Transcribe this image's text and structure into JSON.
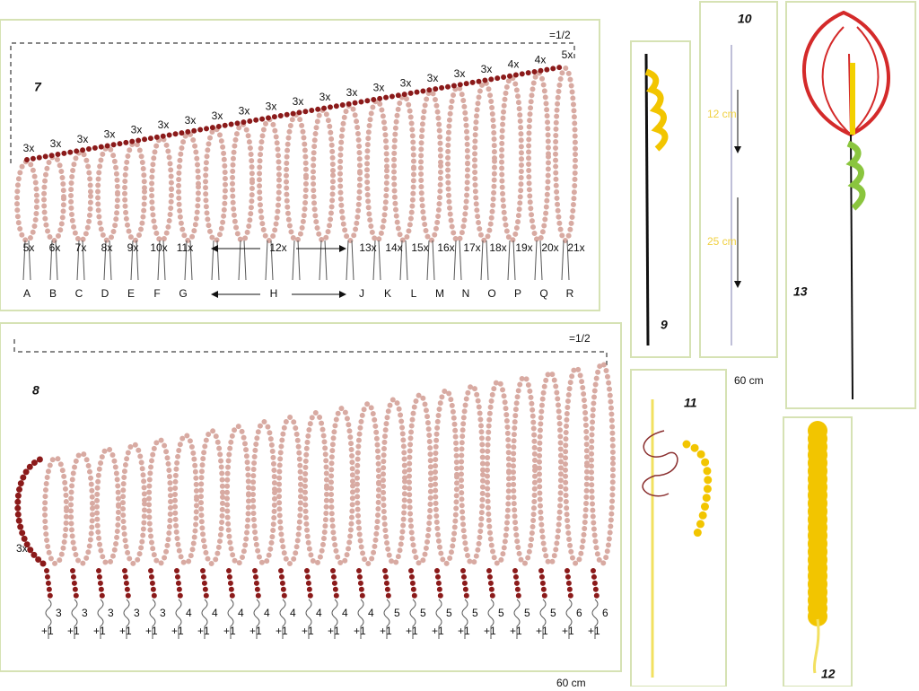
{
  "panel7": {
    "number": "7",
    "half": "=1/2",
    "top_counts": [
      "3x",
      "3x",
      "3x",
      "3x",
      "3x",
      "3x",
      "3x",
      "3x",
      "3x",
      "3x",
      "3x",
      "3x",
      "3x",
      "3x",
      "3x",
      "3x",
      "3x",
      "3x",
      "4x",
      "4x",
      "5x"
    ],
    "bottom_counts_left": [
      "5x",
      "6x",
      "7x",
      "8x",
      "9x",
      "10x",
      "11x"
    ],
    "bottom_count_middle": "12x",
    "bottom_counts_right": [
      "13x",
      "14x",
      "15x",
      "16x",
      "17x",
      "18x",
      "19x",
      "20x",
      "21x"
    ],
    "letters_left": [
      "A",
      "B",
      "C",
      "D",
      "E",
      "F",
      "G"
    ],
    "letter_middle": "H",
    "letters_right": [
      "J",
      "K",
      "L",
      "M",
      "N",
      "O",
      "P",
      "Q",
      "R"
    ]
  },
  "panel8": {
    "number": "8",
    "half": "=1/2",
    "side_count": "3x",
    "wire_counts": [
      "3",
      "3",
      "3",
      "3",
      "3",
      "4",
      "4",
      "4",
      "4",
      "4",
      "4",
      "4",
      "4",
      "5",
      "5",
      "5",
      "5",
      "5",
      "5",
      "5",
      "6",
      "6"
    ],
    "wire_extra": "+1"
  },
  "panel9": {
    "number": "9"
  },
  "panel10": {
    "number": "10",
    "upper_length": "12 cm",
    "lower_length": "25 cm"
  },
  "panel11": {
    "number": "11",
    "wire_length": "60 cm"
  },
  "panel12": {
    "number": "12"
  },
  "panel13": {
    "number": "13"
  },
  "footer_length": "60 cm"
}
